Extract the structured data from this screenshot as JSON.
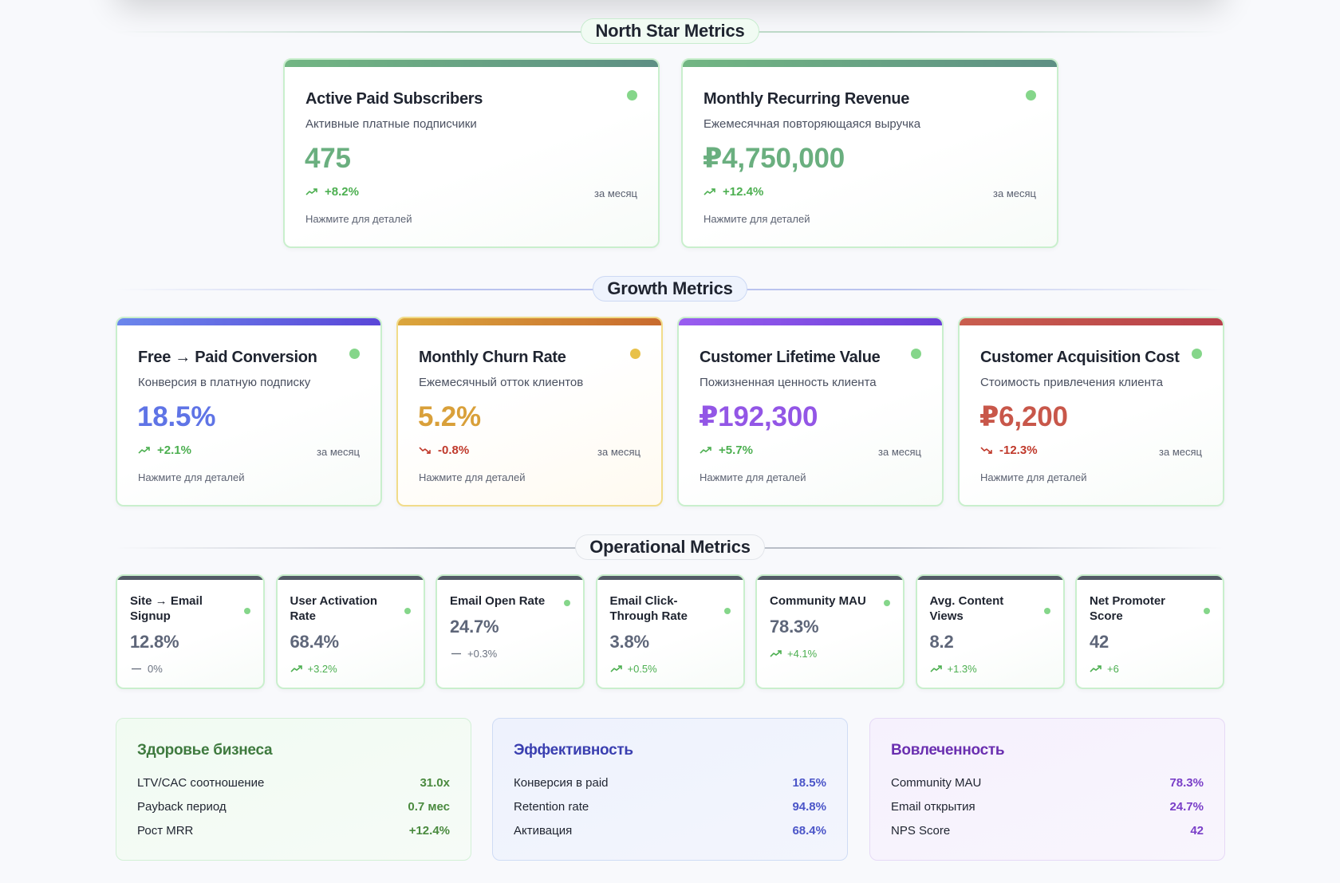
{
  "colors": {
    "accent_green": "#6aaf7f",
    "trend_up": "#4caf50",
    "trend_down": "#c0392b",
    "status_green": "#85d68a",
    "status_yellow": "#e8c14a"
  },
  "sections": {
    "north_star": "North Star Metrics",
    "growth": "Growth Metrics",
    "operational": "Operational Metrics"
  },
  "north_star_cards": [
    {
      "title": "Active Paid Subscribers",
      "subtitle": "Активные платные подписчики",
      "value": "475",
      "trend": "+8.2%",
      "trend_direction": "up",
      "period": "за месяц",
      "hint": "Нажмите для деталей",
      "status": "green",
      "value_color": "#6aaf7f"
    },
    {
      "title": "Monthly Recurring Revenue",
      "subtitle": "Ежемесячная повторяющаяся выручка",
      "value": "₽4,750,000",
      "trend": "+12.4%",
      "trend_direction": "up",
      "period": "за месяц",
      "hint": "Нажмите для деталей",
      "status": "green",
      "value_color": "#6aaf7f"
    }
  ],
  "growth_cards": [
    {
      "title": "Free → Paid Conversion",
      "subtitle": "Конверсия в платную подписку",
      "value": "18.5%",
      "trend": "+2.1%",
      "trend_direction": "up",
      "period": "за месяц",
      "hint": "Нажмите для деталей",
      "status": "green",
      "value_color": "#5f74e6"
    },
    {
      "title": "Monthly Churn Rate",
      "subtitle": "Ежемесячный отток клиентов",
      "value": "5.2%",
      "trend": "-0.8%",
      "trend_direction": "down",
      "period": "за месяц",
      "hint": "Нажмите для деталей",
      "status": "yellow",
      "value_color": "#d9a03a"
    },
    {
      "title": "Customer Lifetime Value",
      "subtitle": "Пожизненная ценность клиента",
      "value": "₽192,300",
      "trend": "+5.7%",
      "trend_direction": "up",
      "period": "за месяц",
      "hint": "Нажмите для деталей",
      "status": "green",
      "value_color": "#9356e6"
    },
    {
      "title": "Customer Acquisition Cost",
      "subtitle": "Стоимость привлечения клиента",
      "value": "₽6,200",
      "trend": "-12.3%",
      "trend_direction": "down",
      "period": "за месяц",
      "hint": "Нажмите для деталей",
      "status": "green",
      "value_color": "#c8574a"
    }
  ],
  "operational_cards": [
    {
      "title": "Site → Email Signup",
      "value": "12.8%",
      "trend": "0%",
      "trend_direction": "flat",
      "lines": 2
    },
    {
      "title": "User Activation Rate",
      "value": "68.4%",
      "trend": "+3.2%",
      "trend_direction": "up",
      "lines": 2
    },
    {
      "title": "Email Open Rate",
      "value": "24.7%",
      "trend": "+0.3%",
      "trend_direction": "flat",
      "lines": 1
    },
    {
      "title": "Email Click-Through Rate",
      "value": "3.8%",
      "trend": "+0.5%",
      "trend_direction": "up",
      "lines": 2
    },
    {
      "title": "Community MAU",
      "value": "78.3%",
      "trend": "+4.1%",
      "trend_direction": "up",
      "lines": 1
    },
    {
      "title": "Avg. Content Views",
      "value": "8.2",
      "trend": "+1.3%",
      "trend_direction": "up",
      "lines": 2
    },
    {
      "title": "Net Promoter Score",
      "value": "42",
      "trend": "+6",
      "trend_direction": "up",
      "lines": 2
    }
  ],
  "summary_panels": [
    {
      "title": "Здоровье бизнеса",
      "title_color": "#3f7a3f",
      "value_color": "#4a8a3f",
      "rows": [
        {
          "label": "LTV/CAC соотношение",
          "value": "31.0x"
        },
        {
          "label": "Payback период",
          "value": "0.7 мес"
        },
        {
          "label": "Рост MRR",
          "value": "+12.4%"
        }
      ]
    },
    {
      "title": "Эффективность",
      "title_color": "#3a3fb0",
      "value_color": "#4b55c8",
      "rows": [
        {
          "label": "Конверсия в paid",
          "value": "18.5%"
        },
        {
          "label": "Retention rate",
          "value": "94.8%"
        },
        {
          "label": "Активация",
          "value": "68.4%"
        }
      ]
    },
    {
      "title": "Вовлеченность",
      "title_color": "#6a2fb0",
      "value_color": "#7a3fc8",
      "rows": [
        {
          "label": "Community MAU",
          "value": "78.3%"
        },
        {
          "label": "Email открытия",
          "value": "24.7%"
        },
        {
          "label": "NPS Score",
          "value": "42"
        }
      ]
    }
  ]
}
